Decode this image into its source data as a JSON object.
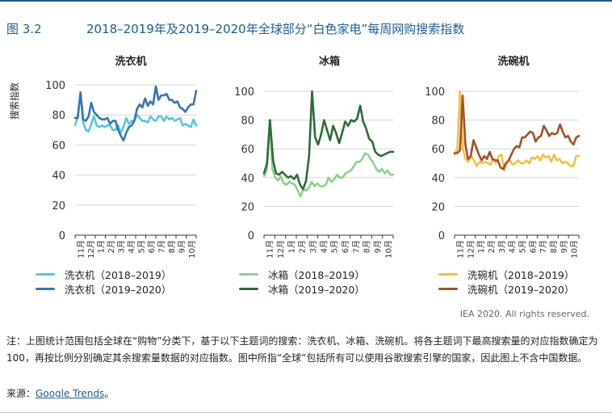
{
  "header": {
    "figure_label": "图 3.2",
    "title": "2018–2019年及2019–2020年全球部分“白色家电”每周网购搜索指数"
  },
  "y_axis_label": "搜索指数",
  "credit": "IEA 2020. All rights reserved.",
  "note": "注：上图统计范围包括全球在“购物”分类下，基于以下主题词的搜索：洗衣机、冰箱、洗碗机。将各主题词下最高搜索量的对应指数确定为 100，再按比例分别确定其余搜索量数据的对应指数。图中所指“全球”包括所有可以使用谷歌搜索引擎的国家，因此图上不含中国数据。",
  "source": {
    "prefix": "来源：",
    "link_text": "Google Trends",
    "suffix": "。"
  },
  "chart_data": [
    {
      "type": "line",
      "title": "洗衣机",
      "ylabel": "搜索指数",
      "ylim": [
        0,
        100
      ],
      "yticks": [
        0,
        20,
        40,
        60,
        80,
        100
      ],
      "x_tick_labels": [
        "11月",
        "12月",
        "1月",
        "2月",
        "3月",
        "4月",
        "5月",
        "6月",
        "7月",
        "8月",
        "9月",
        "10月"
      ],
      "series": [
        {
          "name": "洗衣机（2018–2019）",
          "color": "#5bc4e3",
          "values": [
            73,
            79,
            94,
            75,
            70,
            69,
            74,
            79,
            73,
            72,
            73,
            72,
            73,
            73,
            70,
            70,
            73,
            68,
            72,
            78,
            74,
            76,
            76,
            80,
            78,
            76,
            76,
            75,
            79,
            77,
            76,
            79,
            79,
            76,
            79,
            77,
            78,
            76,
            77,
            78,
            73,
            74,
            73,
            72,
            77,
            73
          ]
        },
        {
          "name": "洗衣机（2019–2020）",
          "color": "#3a74b0",
          "values": [
            78,
            78,
            95,
            77,
            76,
            79,
            88,
            82,
            80,
            78,
            77,
            77,
            78,
            74,
            76,
            76,
            70,
            66,
            63,
            68,
            72,
            73,
            76,
            84,
            87,
            85,
            91,
            86,
            89,
            87,
            99,
            90,
            93,
            93,
            94,
            90,
            90,
            88,
            89,
            85,
            84,
            82,
            85,
            87,
            87,
            96
          ]
        }
      ]
    },
    {
      "type": "line",
      "title": "冰箱",
      "ylim": [
        0,
        100
      ],
      "yticks": [
        0,
        20,
        40,
        60,
        80,
        100
      ],
      "x_tick_labels": [
        "11月",
        "12月",
        "1月",
        "2月",
        "3月",
        "4月",
        "5月",
        "6月",
        "7月",
        "8月",
        "9月",
        "10月"
      ],
      "series": [
        {
          "name": "冰箱（2018–2019）",
          "color": "#8fcf8f",
          "values": [
            41,
            45,
            80,
            46,
            40,
            38,
            41,
            36,
            35,
            37,
            36,
            35,
            31,
            27,
            32,
            31,
            33,
            37,
            34,
            36,
            34,
            34,
            35,
            40,
            37,
            39,
            42,
            40,
            40,
            43,
            44,
            45,
            48,
            51,
            51,
            53,
            57,
            56,
            53,
            50,
            46,
            44,
            46,
            43,
            45,
            42,
            42
          ]
        },
        {
          "name": "冰箱（2019–2020）",
          "color": "#2d6b3a",
          "values": [
            43,
            50,
            80,
            52,
            43,
            42,
            44,
            42,
            40,
            41,
            39,
            42,
            35,
            32,
            38,
            55,
            100,
            68,
            63,
            70,
            80,
            73,
            66,
            76,
            71,
            64,
            71,
            79,
            76,
            80,
            79,
            81,
            90,
            79,
            74,
            67,
            65,
            58,
            56,
            55,
            56,
            57,
            58,
            58
          ]
        }
      ]
    },
    {
      "type": "line",
      "title": "洗碗机",
      "ylim": [
        0,
        100
      ],
      "yticks": [
        0,
        20,
        40,
        60,
        80,
        100
      ],
      "x_tick_labels": [
        "11月",
        "12月",
        "1月",
        "2月",
        "3月",
        "4月",
        "5月",
        "6月",
        "7月",
        "8月",
        "9月",
        "10月"
      ],
      "series": [
        {
          "name": "洗碗机（2018–2019）",
          "color": "#f2c043",
          "values": [
            56,
            60,
            100,
            60,
            53,
            51,
            55,
            52,
            48,
            51,
            50,
            51,
            50,
            49,
            53,
            50,
            55,
            56,
            45,
            51,
            52,
            49,
            50,
            52,
            50,
            50,
            52,
            50,
            54,
            53,
            55,
            52,
            56,
            54,
            55,
            51,
            56,
            52,
            53,
            50,
            51,
            50,
            48,
            48,
            55,
            55
          ]
        },
        {
          "name": "洗碗机（2019–2020）",
          "color": "#a0522d",
          "values": [
            57,
            57,
            59,
            97,
            63,
            53,
            55,
            66,
            61,
            56,
            52,
            55,
            53,
            58,
            53,
            52,
            52,
            47,
            46,
            50,
            52,
            56,
            60,
            62,
            61,
            68,
            68,
            70,
            72,
            71,
            65,
            68,
            69,
            76,
            73,
            69,
            71,
            70,
            71,
            77,
            72,
            68,
            69,
            65,
            63,
            68,
            69
          ]
        }
      ]
    }
  ]
}
